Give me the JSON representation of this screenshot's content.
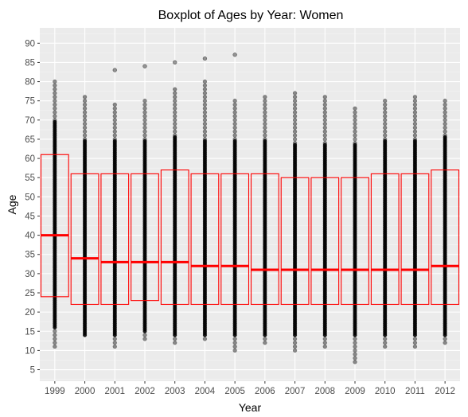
{
  "chart_data": {
    "type": "boxplot",
    "title": "Boxplot of Ages by Year: Women",
    "xlabel": "Year",
    "ylabel": "Age",
    "categories": [
      "1999",
      "2000",
      "2001",
      "2002",
      "2003",
      "2004",
      "2005",
      "2006",
      "2007",
      "2008",
      "2009",
      "2010",
      "2011",
      "2012"
    ],
    "ylim": [
      2,
      94
    ],
    "yticks": [
      5,
      10,
      15,
      20,
      25,
      30,
      35,
      40,
      45,
      50,
      55,
      60,
      65,
      70,
      75,
      80,
      85,
      90
    ],
    "grid": true,
    "colors": {
      "panel": "#ebebeb",
      "grid_major": "#ffffff",
      "box": "#ff0000",
      "points": "#000000"
    },
    "boxes": [
      {
        "year": "1999",
        "q1": 24,
        "median": 40,
        "q3": 61,
        "min": 11,
        "max": 80,
        "outliers": []
      },
      {
        "year": "2000",
        "q1": 22,
        "median": 34,
        "q3": 56,
        "min": 14,
        "max": 76,
        "outliers": []
      },
      {
        "year": "2001",
        "q1": 22,
        "median": 33,
        "q3": 56,
        "min": 11,
        "max": 74,
        "outliers": [
          83
        ]
      },
      {
        "year": "2002",
        "q1": 23,
        "median": 33,
        "q3": 56,
        "min": 13,
        "max": 75,
        "outliers": [
          84
        ]
      },
      {
        "year": "2003",
        "q1": 22,
        "median": 33,
        "q3": 57,
        "min": 12,
        "max": 78,
        "outliers": [
          85
        ]
      },
      {
        "year": "2004",
        "q1": 22,
        "median": 32,
        "q3": 56,
        "min": 13,
        "max": 80,
        "outliers": [
          86
        ]
      },
      {
        "year": "2005",
        "q1": 22,
        "median": 32,
        "q3": 56,
        "min": 10,
        "max": 75,
        "outliers": [
          87
        ]
      },
      {
        "year": "2006",
        "q1": 22,
        "median": 31,
        "q3": 56,
        "min": 12,
        "max": 76,
        "outliers": []
      },
      {
        "year": "2007",
        "q1": 22,
        "median": 31,
        "q3": 55,
        "min": 10,
        "max": 77,
        "outliers": []
      },
      {
        "year": "2008",
        "q1": 22,
        "median": 31,
        "q3": 55,
        "min": 11,
        "max": 76,
        "outliers": []
      },
      {
        "year": "2009",
        "q1": 22,
        "median": 31,
        "q3": 55,
        "min": 7,
        "max": 73,
        "outliers": []
      },
      {
        "year": "2010",
        "q1": 22,
        "median": 31,
        "q3": 56,
        "min": 11,
        "max": 75,
        "outliers": []
      },
      {
        "year": "2011",
        "q1": 22,
        "median": 31,
        "q3": 56,
        "min": 11,
        "max": 76,
        "outliers": []
      },
      {
        "year": "2012",
        "q1": 22,
        "median": 32,
        "q3": 57,
        "min": 12,
        "max": 75,
        "outliers": []
      }
    ]
  }
}
